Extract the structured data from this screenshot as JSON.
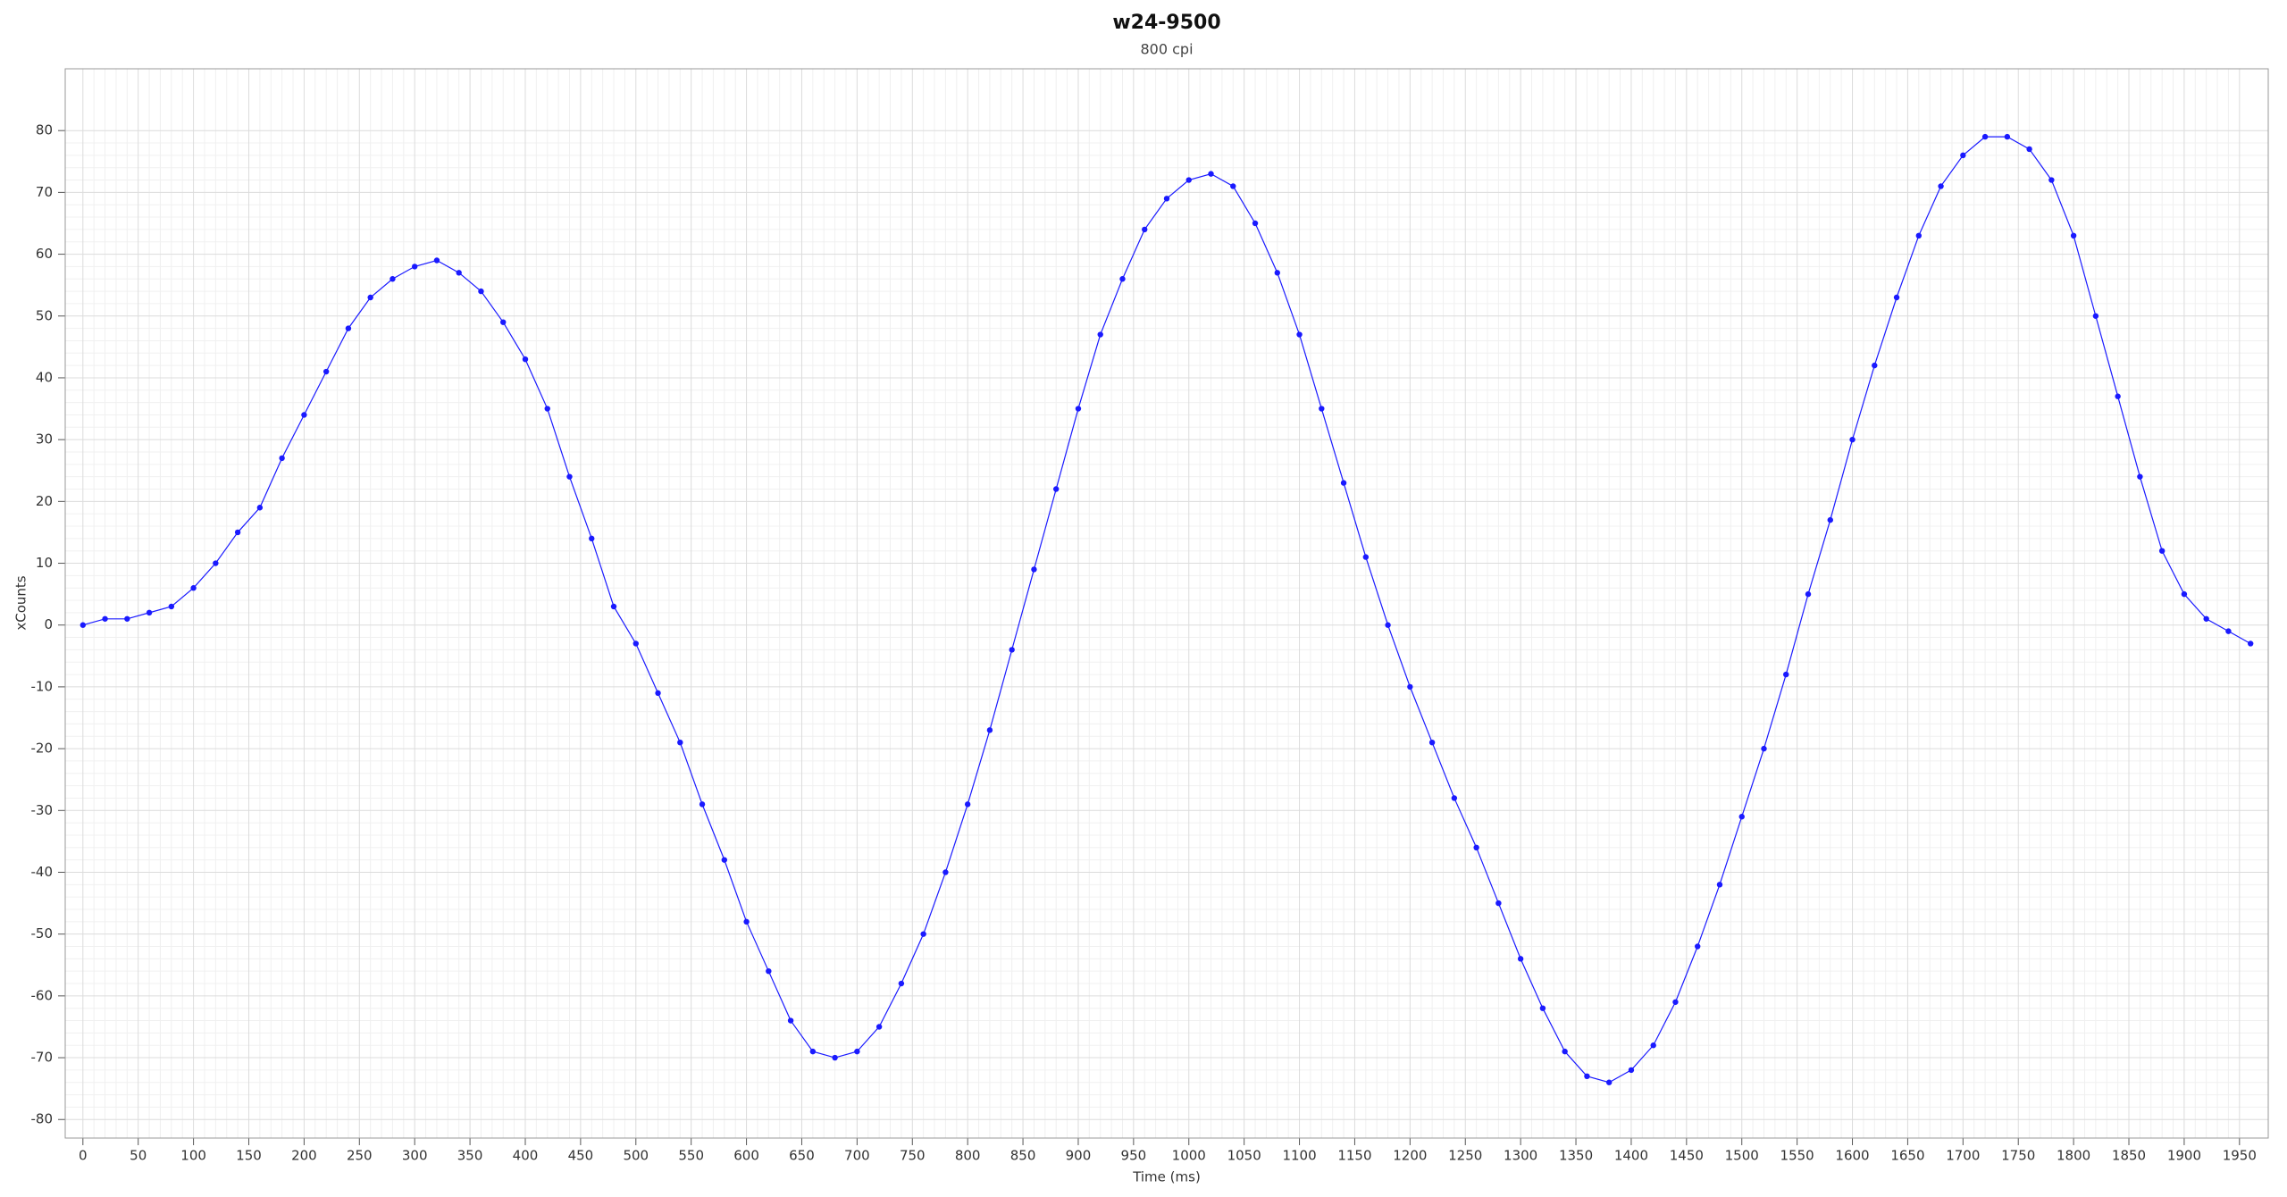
{
  "chart_data": {
    "type": "scatter",
    "title": "w24-9500",
    "subtitle": "800 cpi",
    "x_label": "Time (ms)",
    "y_label": "xCounts",
    "x": [
      0,
      20,
      40,
      60,
      80,
      100,
      120,
      140,
      160,
      180,
      200,
      220,
      240,
      260,
      280,
      300,
      320,
      340,
      360,
      380,
      400,
      420,
      440,
      460,
      480,
      500,
      520,
      540,
      560,
      580,
      600,
      620,
      640,
      660,
      680,
      700,
      720,
      740,
      760,
      780,
      800,
      820,
      840,
      860,
      880,
      900,
      920,
      940,
      960,
      980,
      1000,
      1020,
      1040,
      1060,
      1080,
      1100,
      1120,
      1140,
      1160,
      1180,
      1200,
      1220,
      1240,
      1260,
      1280,
      1300,
      1320,
      1340,
      1360,
      1380,
      1400,
      1420,
      1440,
      1460,
      1480,
      1500,
      1520,
      1540,
      1560,
      1580,
      1600,
      1620,
      1640,
      1660,
      1680,
      1700,
      1720,
      1740,
      1760,
      1780,
      1800,
      1820,
      1840,
      1860,
      1880,
      1900,
      1920,
      1940,
      1960
    ],
    "series": [
      {
        "color": "#1a1aff",
        "values": [
          0,
          1,
          1,
          2,
          3,
          6,
          10,
          15,
          19,
          27,
          34,
          41,
          48,
          53,
          56,
          58,
          59,
          57,
          54,
          49,
          43,
          35,
          24,
          14,
          3,
          -3,
          -11,
          -19,
          -29,
          -38,
          -48,
          -56,
          -64,
          -69,
          -70,
          -69,
          -65,
          -58,
          -50,
          -40,
          -29,
          -17,
          -4,
          9,
          22,
          35,
          47,
          56,
          64,
          69,
          72,
          73,
          71,
          65,
          57,
          47,
          35,
          23,
          11,
          0,
          -10,
          -19,
          -28,
          -36,
          -45,
          -54,
          -62,
          -69,
          -73,
          -74,
          -72,
          -68,
          -61,
          -52,
          -42,
          -31,
          -20,
          -8,
          5,
          17,
          30,
          42,
          53,
          63,
          71,
          76,
          79,
          79,
          77,
          72,
          63,
          50,
          37,
          24,
          12,
          5,
          1,
          -1,
          -3
        ]
      }
    ],
    "xlim": [
      -16,
      1976
    ],
    "ylim": [
      -83,
      90
    ],
    "xticks": [
      0,
      50,
      100,
      150,
      200,
      250,
      300,
      350,
      400,
      450,
      500,
      550,
      600,
      650,
      700,
      750,
      800,
      850,
      900,
      950,
      1000,
      1050,
      1100,
      1150,
      1200,
      1250,
      1300,
      1350,
      1400,
      1450,
      1500,
      1550,
      1600,
      1650,
      1700,
      1750,
      1800,
      1850,
      1900,
      1950
    ],
    "yticks": [
      -80,
      -70,
      -60,
      -50,
      -40,
      -30,
      -20,
      -10,
      0,
      10,
      20,
      30,
      40,
      50,
      60,
      70,
      80
    ],
    "grid": true
  }
}
